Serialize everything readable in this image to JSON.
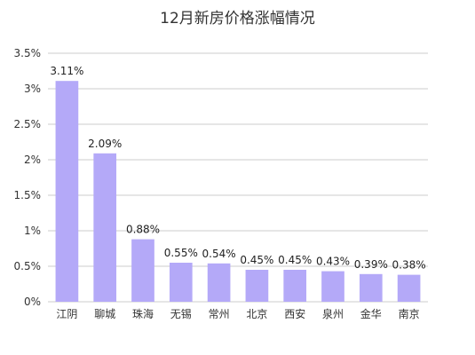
{
  "chart_data": {
    "type": "bar",
    "title": "12月新房价格涨幅情况",
    "categories": [
      "江阴",
      "聊城",
      "珠海",
      "无锡",
      "常州",
      "北京",
      "西安",
      "泉州",
      "金华",
      "南京"
    ],
    "values": [
      3.11,
      2.09,
      0.88,
      0.55,
      0.54,
      0.45,
      0.45,
      0.43,
      0.39,
      0.38
    ],
    "data_labels": [
      "3.11%",
      "2.09%",
      "0.88%",
      "0.55%",
      "0.54%",
      "0.45%",
      "0.45%",
      "0.43%",
      "0.39%",
      "0.38%"
    ],
    "y_ticks": [
      {
        "value": 0,
        "label": "0%"
      },
      {
        "value": 0.5,
        "label": "0.5%"
      },
      {
        "value": 1,
        "label": "1%"
      },
      {
        "value": 1.5,
        "label": "1.5%"
      },
      {
        "value": 2,
        "label": "2%"
      },
      {
        "value": 2.5,
        "label": "2.5%"
      },
      {
        "value": 3,
        "label": "3%"
      },
      {
        "value": 3.5,
        "label": "3.5%"
      }
    ],
    "ylim": [
      0,
      3.5
    ],
    "xlabel": "",
    "ylabel": "",
    "grid": true,
    "legend": "none",
    "bar_color": "#b4a9f8"
  }
}
